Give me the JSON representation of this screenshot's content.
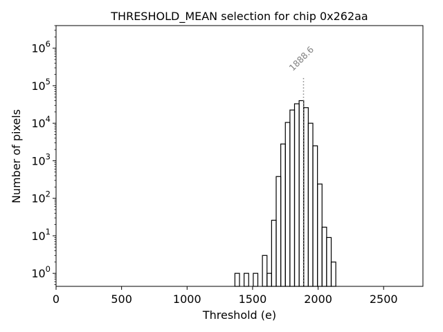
{
  "chart_data": {
    "type": "histogram",
    "title": "THRESHOLD_MEAN selection for chip 0x262aa",
    "xlabel": "Threshold (e)",
    "ylabel": "Number of pixels",
    "xlim": [
      0,
      2800
    ],
    "ylim": [
      0.45,
      4000000
    ],
    "yscale": "log",
    "grid": false,
    "xticks": [
      0,
      500,
      1000,
      1500,
      2000,
      2500
    ],
    "xtick_labels": [
      "0",
      "500",
      "1000",
      "1500",
      "2000",
      "2500"
    ],
    "ytick_bases": [
      "10",
      "10",
      "10",
      "10",
      "10",
      "10",
      "10"
    ],
    "ytick_exponents": [
      "0",
      "1",
      "2",
      "3",
      "4",
      "5",
      "6"
    ],
    "bin_width": 35,
    "bins": [
      {
        "x0": 1365,
        "x1": 1400,
        "count": 1
      },
      {
        "x0": 1400,
        "x1": 1435,
        "count": 0
      },
      {
        "x0": 1435,
        "x1": 1470,
        "count": 1
      },
      {
        "x0": 1470,
        "x1": 1505,
        "count": 0
      },
      {
        "x0": 1505,
        "x1": 1540,
        "count": 1
      },
      {
        "x0": 1540,
        "x1": 1575,
        "count": 0
      },
      {
        "x0": 1575,
        "x1": 1610,
        "count": 3
      },
      {
        "x0": 1610,
        "x1": 1645,
        "count": 1
      },
      {
        "x0": 1645,
        "x1": 1680,
        "count": 26
      },
      {
        "x0": 1680,
        "x1": 1715,
        "count": 380
      },
      {
        "x0": 1715,
        "x1": 1750,
        "count": 2800
      },
      {
        "x0": 1750,
        "x1": 1785,
        "count": 10500
      },
      {
        "x0": 1785,
        "x1": 1820,
        "count": 22500
      },
      {
        "x0": 1820,
        "x1": 1855,
        "count": 33000
      },
      {
        "x0": 1855,
        "x1": 1890,
        "count": 40000
      },
      {
        "x0": 1890,
        "x1": 1925,
        "count": 26000
      },
      {
        "x0": 1925,
        "x1": 1960,
        "count": 10000
      },
      {
        "x0": 1960,
        "x1": 1995,
        "count": 2500
      },
      {
        "x0": 1995,
        "x1": 2030,
        "count": 240
      },
      {
        "x0": 2030,
        "x1": 2065,
        "count": 17
      },
      {
        "x0": 2065,
        "x1": 2100,
        "count": 9
      },
      {
        "x0": 2100,
        "x1": 2135,
        "count": 2
      }
    ],
    "annotations": [
      {
        "type": "vline",
        "x": 1888.6,
        "y_top": 160000,
        "style": "dotted",
        "color": "#808080",
        "text": "1888.6"
      }
    ],
    "colors": {
      "line": "#000000",
      "annotation": "#808080"
    }
  }
}
